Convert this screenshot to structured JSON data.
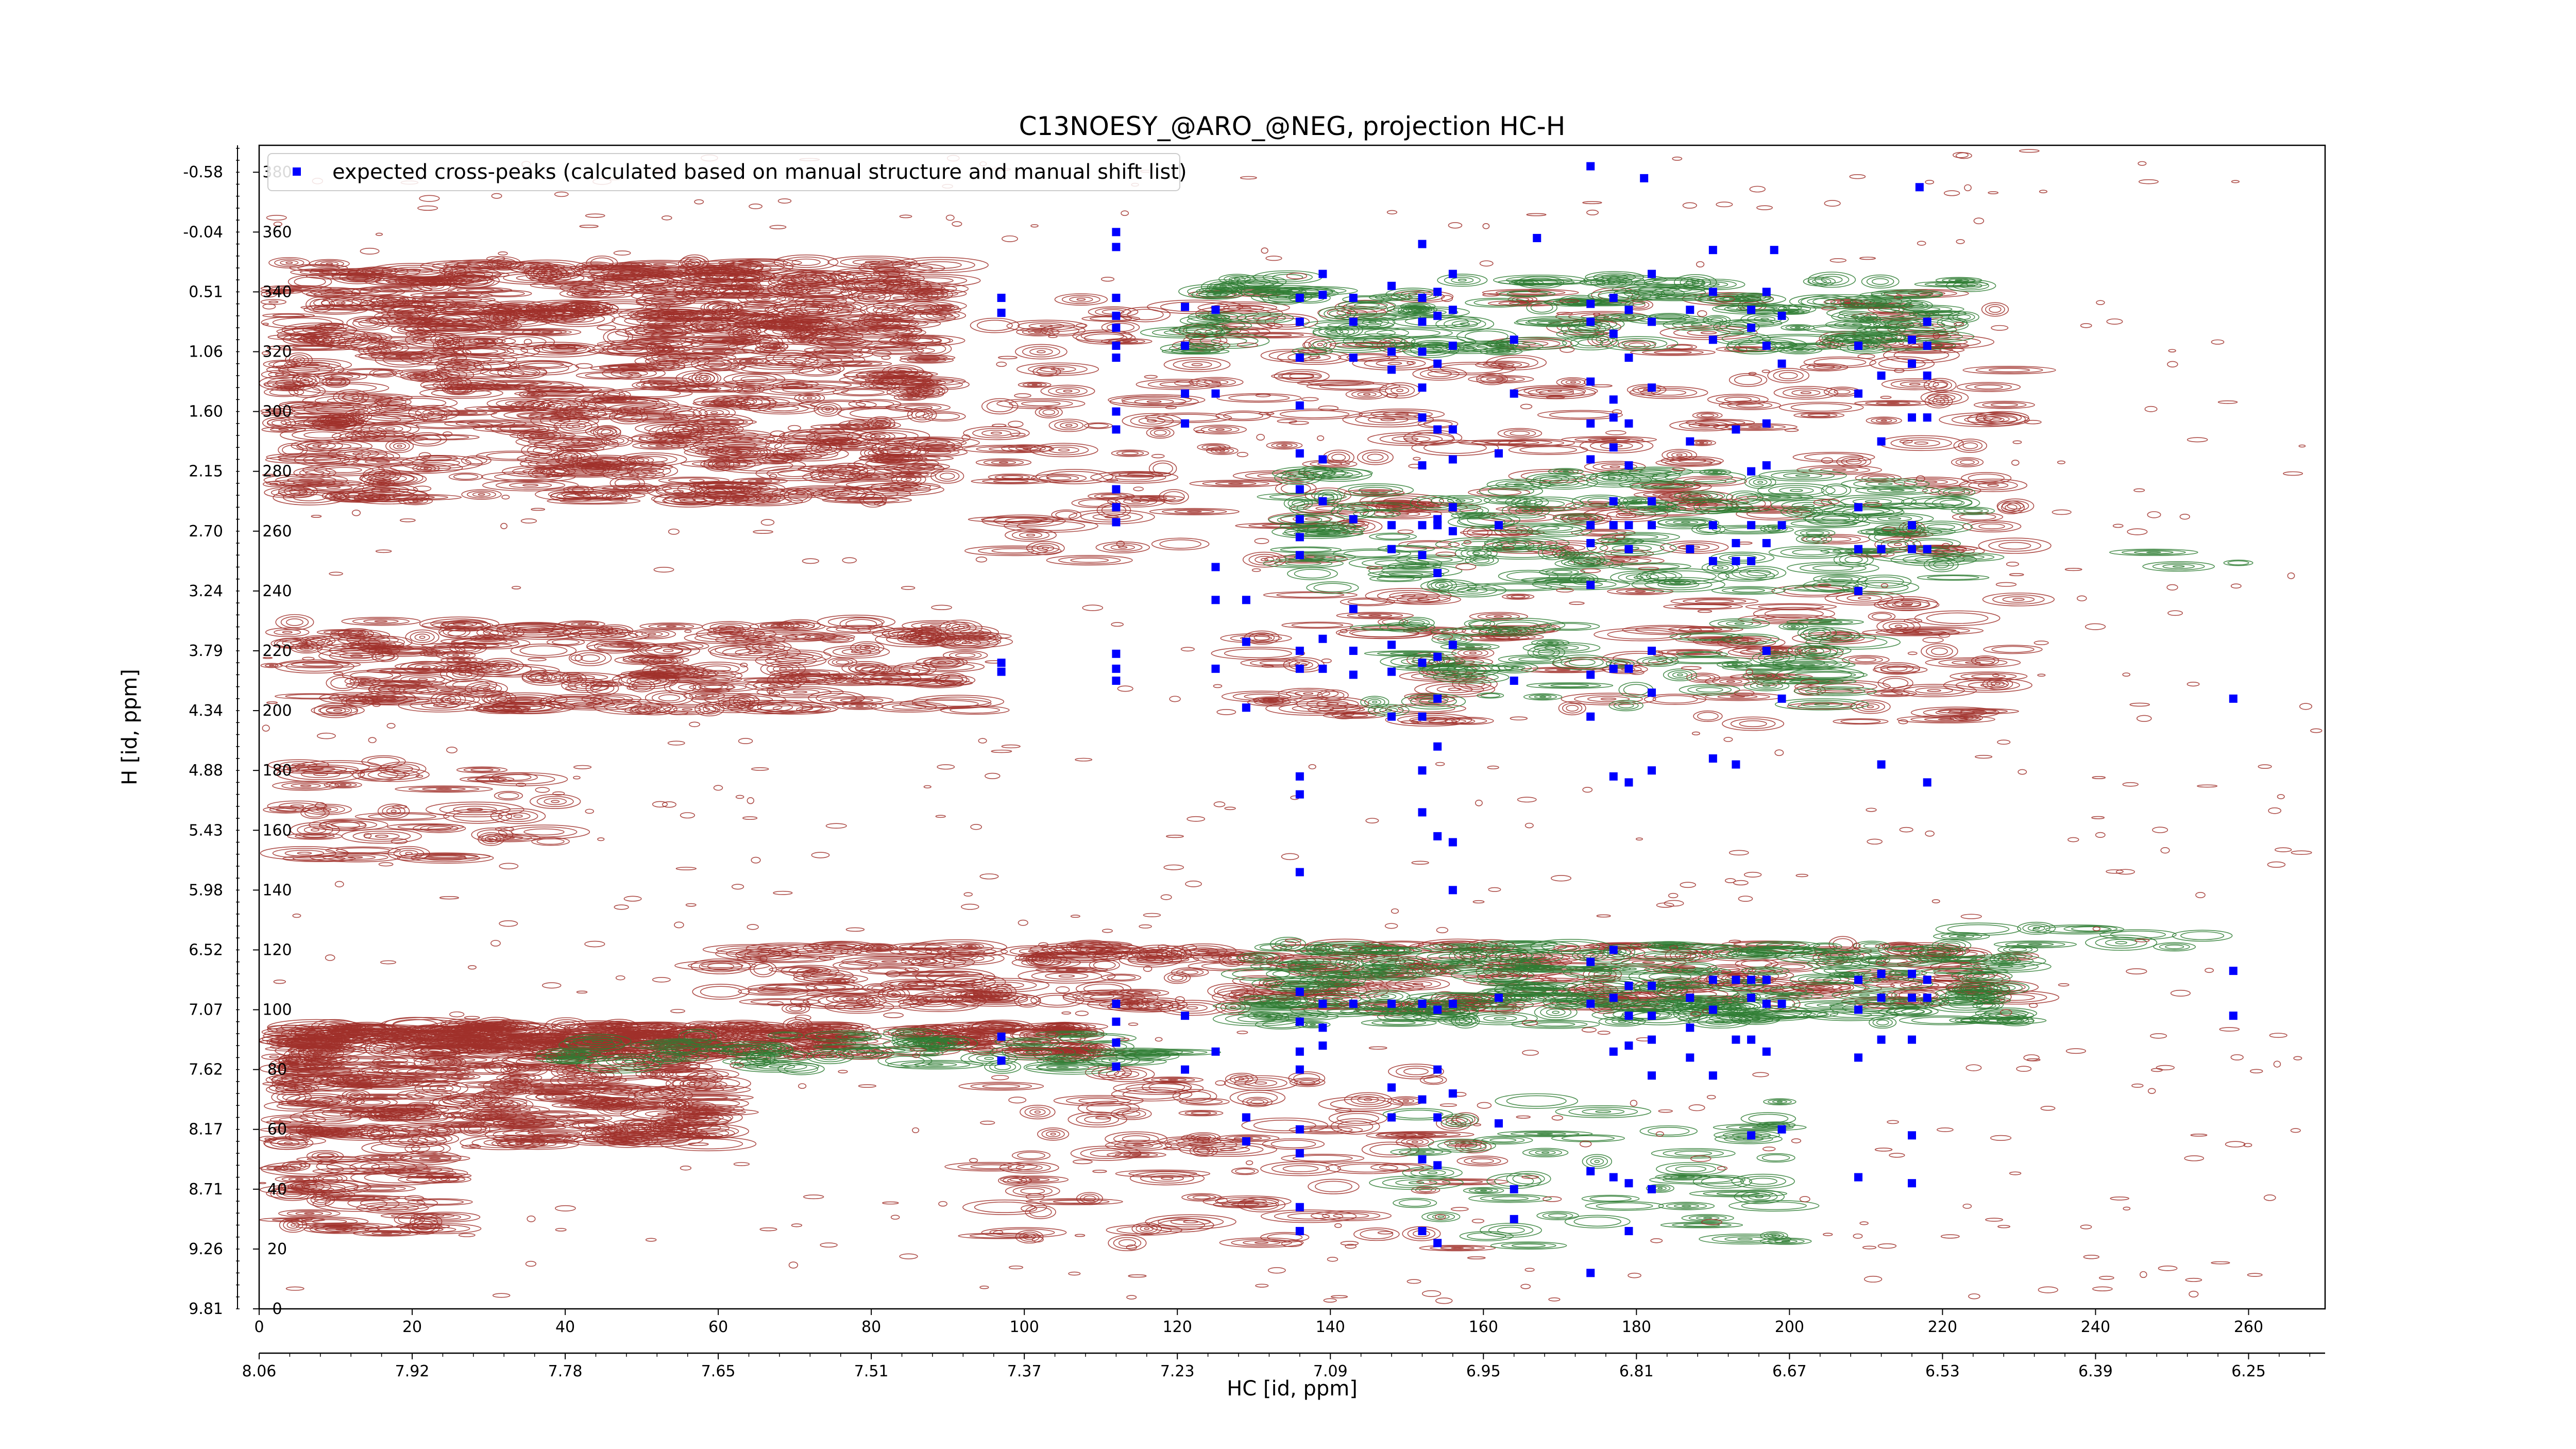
{
  "chart_data": {
    "type": "scatter",
    "title": "C13NOESY_@ARO_@NEG, projection HC-H",
    "xlabel": "HC [id, ppm]",
    "ylabel": "H [id, ppm]",
    "xlim": [
      0,
      270
    ],
    "ylim": [
      0,
      389
    ],
    "x_ticks": [
      0,
      20,
      40,
      60,
      80,
      100,
      120,
      140,
      160,
      180,
      200,
      220,
      240,
      260
    ],
    "y_ticks": [
      0,
      20,
      40,
      60,
      80,
      100,
      120,
      140,
      160,
      180,
      200,
      220,
      240,
      260,
      280,
      300,
      320,
      340,
      360,
      380
    ],
    "x_ppm_ticks": [
      "8.06",
      "7.92",
      "7.78",
      "7.65",
      "7.51",
      "7.37",
      "7.23",
      "7.09",
      "6.95",
      "6.81",
      "6.67",
      "6.53",
      "6.39",
      "6.25"
    ],
    "y_ppm_ticks": [
      "9.81",
      "9.26",
      "8.71",
      "8.17",
      "7.62",
      "7.07",
      "6.52",
      "5.98",
      "5.43",
      "4.88",
      "4.34",
      "3.79",
      "3.24",
      "2.70",
      "2.15",
      "1.60",
      "1.06",
      "0.51",
      "-0.04",
      "-0.58"
    ],
    "grid": false,
    "legend_position": "top-left",
    "series": [
      {
        "name": "expected cross-peaks (calculated based on manual structure and manual shift list)",
        "color": "#0000ff",
        "marker": "x-square",
        "points": [
          [
            97,
            338
          ],
          [
            97,
            333
          ],
          [
            97,
            216
          ],
          [
            97,
            213
          ],
          [
            97,
            91
          ],
          [
            97,
            83
          ],
          [
            112,
            360
          ],
          [
            112,
            355
          ],
          [
            112,
            338
          ],
          [
            112,
            332
          ],
          [
            112,
            328
          ],
          [
            112,
            322
          ],
          [
            112,
            318
          ],
          [
            112,
            300
          ],
          [
            112,
            294
          ],
          [
            112,
            274
          ],
          [
            112,
            268
          ],
          [
            112,
            263
          ],
          [
            112,
            219
          ],
          [
            112,
            214
          ],
          [
            112,
            210
          ],
          [
            112,
            102
          ],
          [
            112,
            96
          ],
          [
            112,
            89
          ],
          [
            112,
            81
          ],
          [
            121,
            335
          ],
          [
            121,
            322
          ],
          [
            121,
            306
          ],
          [
            121,
            296
          ],
          [
            121,
            98
          ],
          [
            121,
            80
          ],
          [
            125,
            334
          ],
          [
            125,
            306
          ],
          [
            125,
            248
          ],
          [
            125,
            237
          ],
          [
            125,
            214
          ],
          [
            125,
            86
          ],
          [
            129,
            237
          ],
          [
            129,
            223
          ],
          [
            129,
            201
          ],
          [
            129,
            64
          ],
          [
            129,
            56
          ],
          [
            136,
            338
          ],
          [
            136,
            330
          ],
          [
            136,
            318
          ],
          [
            136,
            302
          ],
          [
            136,
            286
          ],
          [
            136,
            274
          ],
          [
            136,
            264
          ],
          [
            136,
            258
          ],
          [
            136,
            252
          ],
          [
            136,
            220
          ],
          [
            136,
            214
          ],
          [
            136,
            178
          ],
          [
            136,
            172
          ],
          [
            136,
            146
          ],
          [
            136,
            106
          ],
          [
            136,
            96
          ],
          [
            136,
            86
          ],
          [
            136,
            80
          ],
          [
            136,
            60
          ],
          [
            136,
            52
          ],
          [
            136,
            34
          ],
          [
            136,
            26
          ],
          [
            139,
            346
          ],
          [
            139,
            339
          ],
          [
            139,
            284
          ],
          [
            139,
            270
          ],
          [
            139,
            224
          ],
          [
            139,
            214
          ],
          [
            139,
            102
          ],
          [
            139,
            94
          ],
          [
            139,
            88
          ],
          [
            143,
            338
          ],
          [
            143,
            330
          ],
          [
            143,
            318
          ],
          [
            143,
            264
          ],
          [
            143,
            234
          ],
          [
            143,
            220
          ],
          [
            143,
            212
          ],
          [
            143,
            102
          ],
          [
            148,
            342
          ],
          [
            148,
            320
          ],
          [
            148,
            314
          ],
          [
            148,
            262
          ],
          [
            148,
            254
          ],
          [
            148,
            222
          ],
          [
            148,
            213
          ],
          [
            148,
            198
          ],
          [
            148,
            102
          ],
          [
            148,
            74
          ],
          [
            148,
            64
          ],
          [
            152,
            356
          ],
          [
            152,
            338
          ],
          [
            152,
            330
          ],
          [
            152,
            320
          ],
          [
            152,
            308
          ],
          [
            152,
            298
          ],
          [
            152,
            282
          ],
          [
            152,
            262
          ],
          [
            152,
            252
          ],
          [
            152,
            216
          ],
          [
            152,
            198
          ],
          [
            152,
            180
          ],
          [
            152,
            166
          ],
          [
            152,
            102
          ],
          [
            152,
            70
          ],
          [
            152,
            50
          ],
          [
            152,
            26
          ],
          [
            154,
            340
          ],
          [
            154,
            332
          ],
          [
            154,
            316
          ],
          [
            154,
            294
          ],
          [
            154,
            264
          ],
          [
            154,
            262
          ],
          [
            154,
            246
          ],
          [
            154,
            218
          ],
          [
            154,
            204
          ],
          [
            154,
            188
          ],
          [
            154,
            158
          ],
          [
            154,
            100
          ],
          [
            154,
            80
          ],
          [
            154,
            64
          ],
          [
            154,
            48
          ],
          [
            154,
            22
          ],
          [
            156,
            346
          ],
          [
            156,
            334
          ],
          [
            156,
            322
          ],
          [
            156,
            294
          ],
          [
            156,
            284
          ],
          [
            156,
            268
          ],
          [
            156,
            260
          ],
          [
            156,
            222
          ],
          [
            156,
            156
          ],
          [
            156,
            140
          ],
          [
            156,
            102
          ],
          [
            156,
            72
          ],
          [
            162,
            286
          ],
          [
            162,
            262
          ],
          [
            162,
            104
          ],
          [
            162,
            62
          ],
          [
            164,
            324
          ],
          [
            164,
            306
          ],
          [
            164,
            210
          ],
          [
            164,
            40
          ],
          [
            164,
            30
          ],
          [
            174,
            336
          ],
          [
            174,
            330
          ],
          [
            174,
            310
          ],
          [
            174,
            296
          ],
          [
            174,
            284
          ],
          [
            174,
            262
          ],
          [
            174,
            256
          ],
          [
            174,
            242
          ],
          [
            174,
            212
          ],
          [
            174,
            198
          ],
          [
            174,
            116
          ],
          [
            174,
            102
          ],
          [
            174,
            46
          ],
          [
            174,
            12
          ],
          [
            177,
            338
          ],
          [
            177,
            326
          ],
          [
            177,
            304
          ],
          [
            177,
            298
          ],
          [
            177,
            288
          ],
          [
            177,
            270
          ],
          [
            177,
            262
          ],
          [
            177,
            214
          ],
          [
            177,
            178
          ],
          [
            177,
            120
          ],
          [
            177,
            104
          ],
          [
            177,
            86
          ],
          [
            177,
            44
          ],
          [
            179,
            334
          ],
          [
            179,
            318
          ],
          [
            179,
            296
          ],
          [
            179,
            282
          ],
          [
            179,
            262
          ],
          [
            179,
            254
          ],
          [
            179,
            214
          ],
          [
            179,
            176
          ],
          [
            179,
            108
          ],
          [
            179,
            98
          ],
          [
            179,
            88
          ],
          [
            179,
            42
          ],
          [
            179,
            26
          ],
          [
            182,
            346
          ],
          [
            182,
            330
          ],
          [
            182,
            308
          ],
          [
            182,
            270
          ],
          [
            182,
            262
          ],
          [
            182,
            220
          ],
          [
            182,
            206
          ],
          [
            182,
            180
          ],
          [
            182,
            108
          ],
          [
            182,
            98
          ],
          [
            182,
            90
          ],
          [
            182,
            78
          ],
          [
            182,
            40
          ],
          [
            187,
            334
          ],
          [
            187,
            290
          ],
          [
            187,
            254
          ],
          [
            187,
            104
          ],
          [
            187,
            94
          ],
          [
            187,
            84
          ],
          [
            190,
            340
          ],
          [
            190,
            324
          ],
          [
            190,
            262
          ],
          [
            190,
            250
          ],
          [
            190,
            184
          ],
          [
            190,
            110
          ],
          [
            190,
            100
          ],
          [
            190,
            78
          ],
          [
            193,
            294
          ],
          [
            193,
            256
          ],
          [
            193,
            250
          ],
          [
            193,
            182
          ],
          [
            193,
            110
          ],
          [
            193,
            90
          ],
          [
            195,
            334
          ],
          [
            195,
            328
          ],
          [
            195,
            280
          ],
          [
            195,
            262
          ],
          [
            195,
            250
          ],
          [
            195,
            110
          ],
          [
            195,
            104
          ],
          [
            195,
            90
          ],
          [
            195,
            58
          ],
          [
            197,
            340
          ],
          [
            197,
            322
          ],
          [
            197,
            296
          ],
          [
            197,
            282
          ],
          [
            197,
            256
          ],
          [
            197,
            220
          ],
          [
            197,
            110
          ],
          [
            197,
            102
          ],
          [
            197,
            86
          ],
          [
            199,
            332
          ],
          [
            199,
            316
          ],
          [
            199,
            262
          ],
          [
            199,
            204
          ],
          [
            199,
            102
          ],
          [
            199,
            60
          ],
          [
            209,
            322
          ],
          [
            209,
            306
          ],
          [
            209,
            268
          ],
          [
            209,
            254
          ],
          [
            209,
            240
          ],
          [
            209,
            110
          ],
          [
            209,
            100
          ],
          [
            209,
            84
          ],
          [
            209,
            44
          ],
          [
            212,
            312
          ],
          [
            212,
            290
          ],
          [
            212,
            254
          ],
          [
            212,
            182
          ],
          [
            212,
            112
          ],
          [
            212,
            104
          ],
          [
            212,
            90
          ],
          [
            216,
            324
          ],
          [
            216,
            316
          ],
          [
            216,
            298
          ],
          [
            216,
            262
          ],
          [
            216,
            254
          ],
          [
            216,
            112
          ],
          [
            216,
            104
          ],
          [
            216,
            90
          ],
          [
            216,
            58
          ],
          [
            216,
            42
          ],
          [
            218,
            330
          ],
          [
            218,
            322
          ],
          [
            218,
            312
          ],
          [
            218,
            298
          ],
          [
            218,
            254
          ],
          [
            218,
            176
          ],
          [
            218,
            110
          ],
          [
            218,
            104
          ],
          [
            174,
            382
          ],
          [
            181,
            378
          ],
          [
            217,
            375
          ],
          [
            190,
            354
          ],
          [
            198,
            354
          ],
          [
            167,
            358
          ],
          [
            258,
            98
          ],
          [
            258,
            204
          ],
          [
            258,
            113
          ]
        ]
      }
    ],
    "contours": {
      "positive_color": "#a0302a",
      "negative_color": "#2e7d32"
    }
  }
}
